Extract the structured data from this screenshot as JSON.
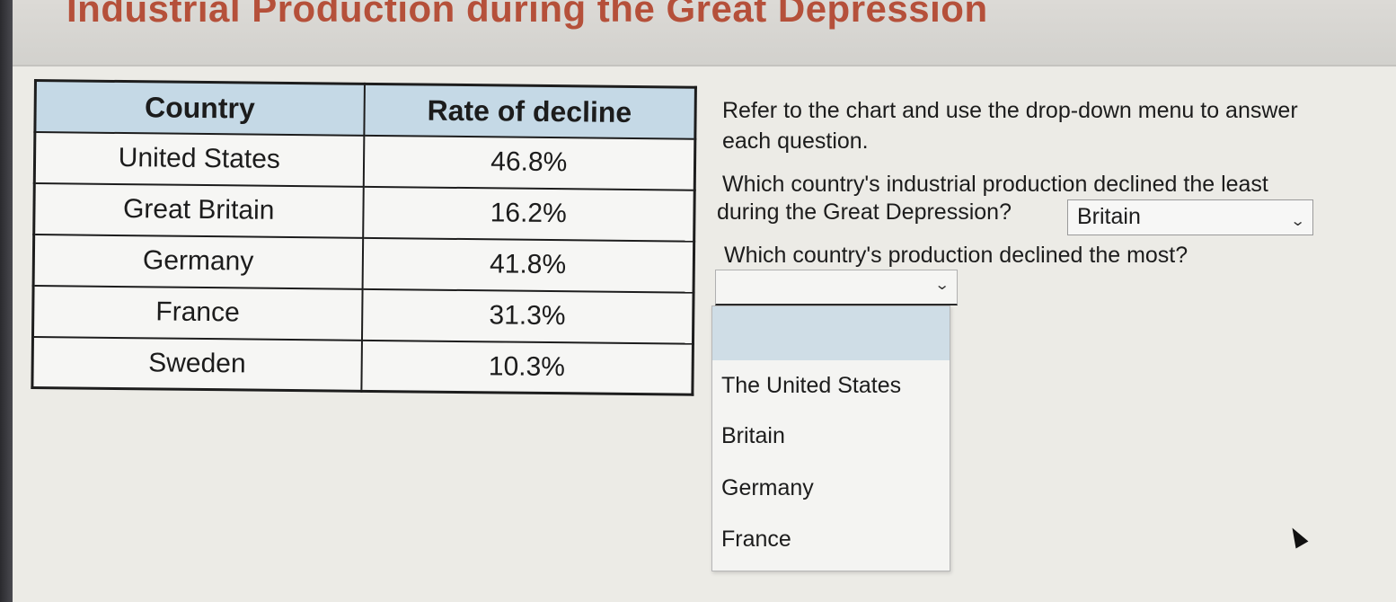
{
  "page": {
    "title": "Industrial Production during the Great Depression"
  },
  "table": {
    "headers": [
      "Country",
      "Rate of decline"
    ],
    "rows": [
      {
        "country": "United States",
        "rate": "46.8%"
      },
      {
        "country": "Great Britain",
        "rate": "16.2%"
      },
      {
        "country": "Germany",
        "rate": "41.8%"
      },
      {
        "country": "France",
        "rate": "31.3%"
      },
      {
        "country": "Sweden",
        "rate": "10.3%"
      }
    ]
  },
  "instructions": "Refer to the chart and use the drop-down menu to answer each question.",
  "question1": {
    "text_line1": "Which country's industrial production declined the least",
    "text_line2": "during the Great Depression?",
    "selected": "Britain"
  },
  "question2": {
    "text": "Which country's production declined the most?",
    "selected": "",
    "options": [
      "",
      "The United States",
      "Britain",
      "Germany",
      "France"
    ]
  },
  "colors": {
    "title": "#b5503a",
    "table_header_bg": "#c5d9e6",
    "highlighted_option_bg": "#cfdde6"
  }
}
